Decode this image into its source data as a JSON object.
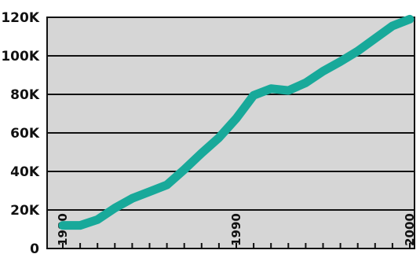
{
  "chart_data": {
    "type": "line",
    "title": "",
    "xlabel": "",
    "ylabel": "",
    "x": [
      1980,
      1981,
      1982,
      1983,
      1984,
      1985,
      1986,
      1987,
      1988,
      1989,
      1990,
      1991,
      1992,
      1993,
      1994,
      1995,
      1996,
      1997,
      1998,
      1999,
      2000
    ],
    "series": [
      {
        "values": [
          12000,
          12000,
          15000,
          21000,
          26000,
          29500,
          33000,
          41000,
          49500,
          57500,
          67500,
          79500,
          83000,
          82000,
          86000,
          92000,
          97000,
          102500,
          109000,
          115500,
          119000
        ]
      }
    ],
    "xlim": [
      1980,
      2000
    ],
    "ylim": [
      0,
      120000
    ],
    "y_ticks": [
      "0",
      "20K",
      "40K",
      "60K",
      "80K",
      "100K",
      "120K"
    ],
    "x_tick_labels": [
      "1980",
      "1990",
      "2000"
    ],
    "grid": true,
    "legend": "none",
    "colors": {
      "plot_background": "#d6d6d6",
      "line": "#18a99a",
      "gridline": "#111111"
    }
  }
}
